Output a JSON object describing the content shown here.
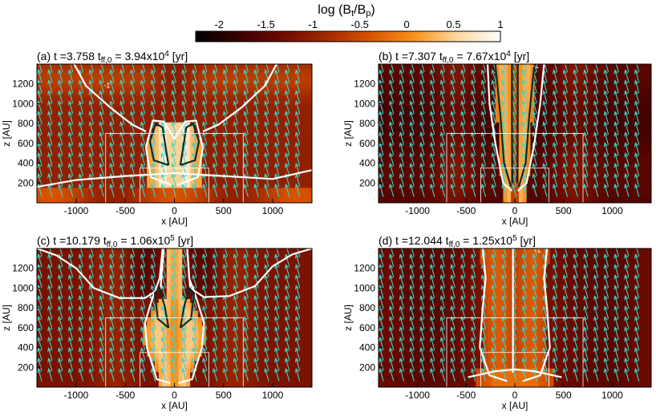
{
  "colorbar": {
    "title": "log (B",
    "title_sub_t": "t",
    "title_mid": "/B",
    "title_sub_p": "p",
    "title_end": ")",
    "range": [
      -2.25,
      1.0
    ],
    "ticks": [
      -2,
      -1.5,
      -1,
      -0.5,
      0,
      0.5,
      1
    ],
    "tick_labels": [
      "-2",
      "-1.5",
      "-1",
      "-0.5",
      "0",
      "0.5",
      "1"
    ],
    "colors": [
      "#000000",
      "#3a0000",
      "#6e0b00",
      "#a02a00",
      "#d75400",
      "#f8921b",
      "#fdd8a0",
      "#ffffff"
    ]
  },
  "chart_data": [
    {
      "type": "heatmap",
      "panel": "(a)",
      "title_pre": "(a) t =3.758 t",
      "title_sub": "ff,0",
      "title_mid": " = 3.94x10",
      "title_sup": "4",
      "title_end": " [yr]",
      "xlabel": "x [AU]",
      "ylabel": "z [AU]",
      "xlim": [
        -1400,
        1400
      ],
      "ylim": [
        0,
        1400
      ],
      "xticks": [
        -1000,
        -500,
        0,
        500,
        1000
      ],
      "xtick_labels": [
        "-1000",
        "-500",
        "0",
        "500",
        "1000"
      ],
      "yticks": [
        200,
        400,
        600,
        800,
        1000,
        1200
      ],
      "ytick_labels": [
        "200",
        "400",
        "600",
        "800",
        "1000",
        "1200"
      ],
      "contour_label": "-1",
      "outflow_halfwidth": 300,
      "outflow_height": 820,
      "background_level": -1.0
    },
    {
      "type": "heatmap",
      "panel": "(b)",
      "title_pre": "(b) t =7.307 t",
      "title_sub": "ff,0",
      "title_mid": " = 7.67x10",
      "title_sup": "4",
      "title_end": " [yr]",
      "xlabel": "x [AU]",
      "ylabel": "z [AU]",
      "xlim": [
        -1400,
        1400
      ],
      "ylim": [
        0,
        1400
      ],
      "xticks": [
        -1000,
        -500,
        0,
        500,
        1000
      ],
      "xtick_labels": [
        "-1000",
        "-500",
        "0",
        "500",
        "1000"
      ],
      "yticks": [
        200,
        400,
        600,
        800,
        1000,
        1200
      ],
      "ytick_labels": [
        "200",
        "400",
        "600",
        "800",
        "1000",
        "1200"
      ],
      "contour_label": "-1",
      "outflow_halfwidth": 220,
      "outflow_height": 1400,
      "background_level": -1.6
    },
    {
      "type": "heatmap",
      "panel": "(c)",
      "title_pre": "(c) t =10.179 t",
      "title_sub": "ff,0",
      "title_mid": " = 1.06x10",
      "title_sup": "5",
      "title_end": " [yr]",
      "xlabel": "x [AU]",
      "ylabel": "z [AU]",
      "xlim": [
        -1400,
        1400
      ],
      "ylim": [
        0,
        1400
      ],
      "xticks": [
        -1000,
        -500,
        0,
        500,
        1000
      ],
      "xtick_labels": [
        "-1000",
        "-500",
        "0",
        "500",
        "1000"
      ],
      "yticks": [
        200,
        400,
        600,
        800,
        1000,
        1200
      ],
      "ytick_labels": [
        "200",
        "400",
        "600",
        "800",
        "1000",
        "1200"
      ],
      "contour_label": "-1",
      "outflow_halfwidth": 300,
      "outflow_height": 1400,
      "background_level": -1.2
    },
    {
      "type": "heatmap",
      "panel": "(d)",
      "title_pre": "(d) t =12.044 t",
      "title_sub": "ff,0",
      "title_mid": " = 1.25x10",
      "title_sup": "5",
      "title_end": " [yr]",
      "xlabel": "x [AU]",
      "ylabel": "z [AU]",
      "xlim": [
        -1400,
        1400
      ],
      "ylim": [
        0,
        1400
      ],
      "xticks": [
        -1000,
        -500,
        0,
        500,
        1000
      ],
      "xtick_labels": [
        "-1000",
        "-500",
        "0",
        "500",
        "1000"
      ],
      "yticks": [
        200,
        400,
        600,
        800,
        1000,
        1200
      ],
      "ytick_labels": [
        "200",
        "400",
        "600",
        "800",
        "1000",
        "1200"
      ],
      "contour_label": "-1",
      "outflow_halfwidth": 560,
      "outflow_height": 1400,
      "background_level": -1.25
    }
  ]
}
